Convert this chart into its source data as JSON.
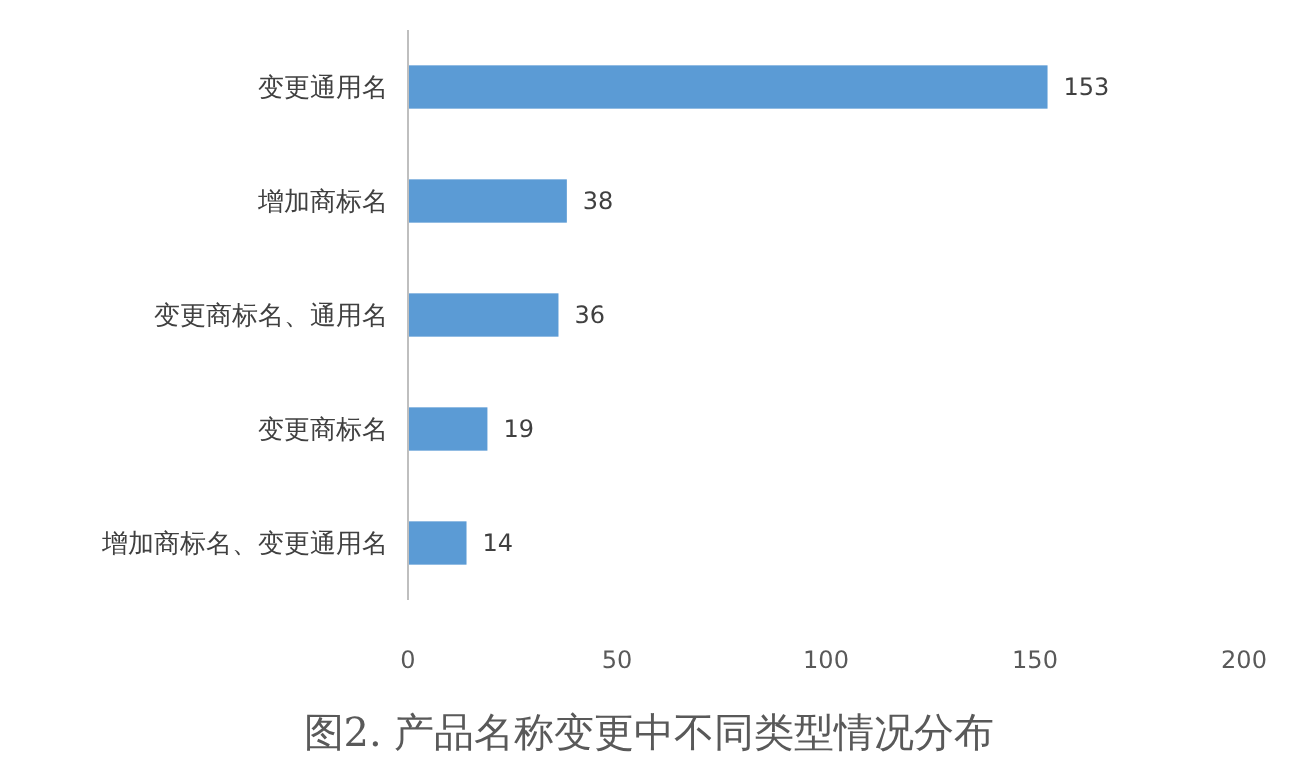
{
  "chart_data": {
    "type": "bar",
    "orientation": "horizontal",
    "title": "图2. 产品名称变更中不同类型情况分布",
    "categories": [
      "变更通用名",
      "增加商标名",
      "变更商标名、通用名",
      "变更商标名",
      "增加商标名、变更通用名"
    ],
    "values": [
      153,
      38,
      36,
      19,
      14
    ],
    "color": "#5b9bd5",
    "data_labels": true,
    "xlim": [
      0,
      200
    ],
    "xticks": [
      0,
      50,
      100,
      150,
      200
    ],
    "grid": false
  }
}
